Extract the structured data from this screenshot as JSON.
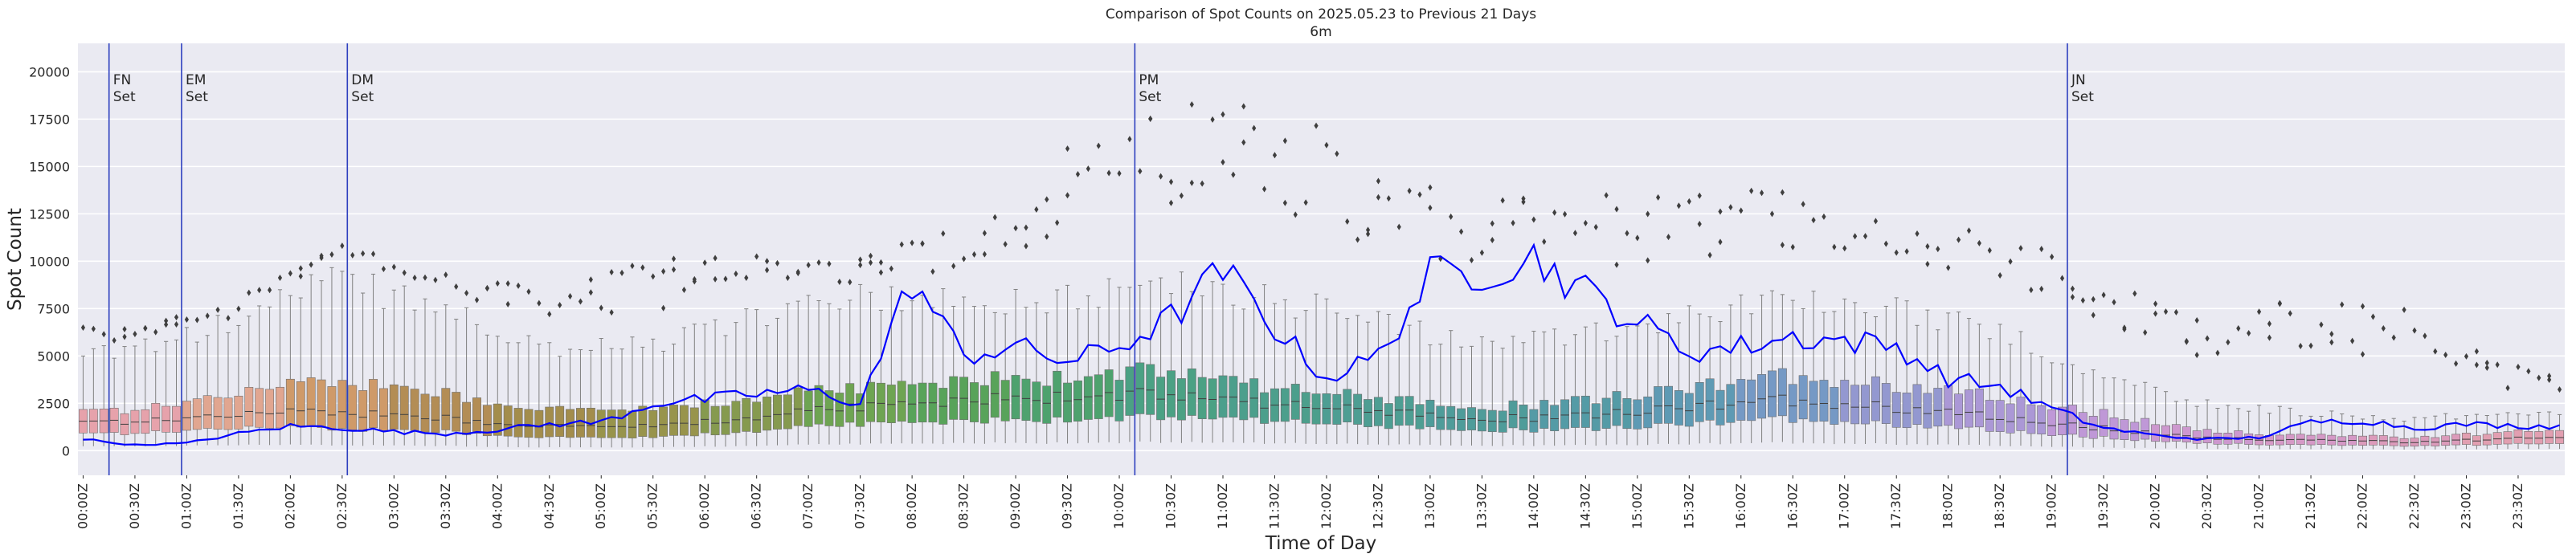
{
  "chart_data": {
    "type": "box",
    "title": "Comparison of Spot Counts on 2025.05.23 to Previous 21 Days",
    "subtitle": "6m",
    "xlabel": "Time of Day",
    "ylabel": "Spot Count",
    "ylim": [
      -1300,
      21500
    ],
    "yticks": [
      0,
      2500,
      5000,
      7500,
      10000,
      12500,
      15000,
      17500,
      20000
    ],
    "grid": true,
    "bins_per_day": 240,
    "bin_minutes": 6,
    "x_tick_labels": [
      "00:00Z",
      "00:30Z",
      "01:00Z",
      "01:30Z",
      "02:00Z",
      "02:30Z",
      "03:00Z",
      "03:30Z",
      "04:00Z",
      "04:30Z",
      "05:00Z",
      "05:30Z",
      "06:00Z",
      "06:30Z",
      "07:00Z",
      "07:30Z",
      "08:00Z",
      "08:30Z",
      "09:00Z",
      "09:30Z",
      "10:00Z",
      "10:30Z",
      "11:00Z",
      "11:30Z",
      "12:00Z",
      "12:30Z",
      "13:00Z",
      "13:30Z",
      "14:00Z",
      "14:30Z",
      "15:00Z",
      "15:30Z",
      "16:00Z",
      "16:30Z",
      "17:00Z",
      "17:30Z",
      "18:00Z",
      "18:30Z",
      "19:00Z",
      "19:30Z",
      "20:00Z",
      "20:30Z",
      "21:00Z",
      "21:30Z",
      "22:00Z",
      "22:30Z",
      "23:00Z",
      "23:30Z"
    ],
    "events": [
      {
        "label_line1": "FN",
        "label_line2": "Set",
        "bin": 2.5
      },
      {
        "label_line1": "EM",
        "label_line2": "Set",
        "bin": 9.5
      },
      {
        "label_line1": "DM",
        "label_line2": "Set",
        "bin": 25.5
      },
      {
        "label_line1": "PM",
        "label_line2": "Set",
        "bin": 101.5
      },
      {
        "label_line1": "JN",
        "label_line2": "Set",
        "bin": 191.5
      }
    ],
    "colors": {
      "background": "#eaeaf2",
      "grid": "#ffffff",
      "event_line": "#2d3fbf",
      "today_line": "#0000ff",
      "median": "#3f3f3f",
      "whisker": "#808080",
      "flier": "#3f3f3f"
    },
    "box_palette": [
      {
        "hour": 0,
        "color": "#e6a2ab"
      },
      {
        "hour": 1,
        "color": "#e1a690"
      },
      {
        "hour": 2,
        "color": "#cf9a69"
      },
      {
        "hour": 3,
        "color": "#b38d55"
      },
      {
        "hour": 4,
        "color": "#a38d4c"
      },
      {
        "hour": 5,
        "color": "#98944c"
      },
      {
        "hour": 6,
        "color": "#869a4f"
      },
      {
        "hour": 7,
        "color": "#6ea452"
      },
      {
        "hour": 8,
        "color": "#58a35a"
      },
      {
        "hour": 9,
        "color": "#4ea26e"
      },
      {
        "hour": 10,
        "color": "#4ba184"
      },
      {
        "hour": 11,
        "color": "#4c9f8c"
      },
      {
        "hour": 12,
        "color": "#4e9e93"
      },
      {
        "hour": 13,
        "color": "#4f9c9a"
      },
      {
        "hour": 14,
        "color": "#549ba6"
      },
      {
        "hour": 15,
        "color": "#5e9ab4"
      },
      {
        "hour": 16,
        "color": "#7599c5"
      },
      {
        "hour": 17,
        "color": "#9398d0"
      },
      {
        "hour": 18,
        "color": "#ab98d6"
      },
      {
        "hour": 19,
        "color": "#bf98d7"
      },
      {
        "hour": 20,
        "color": "#cd98cf"
      },
      {
        "hour": 21,
        "color": "#d598c6"
      },
      {
        "hour": 22,
        "color": "#dc9bbb"
      },
      {
        "hour": 23,
        "color": "#e29fb1"
      }
    ],
    "hourly_profile": [
      {
        "hour": 0,
        "q1": 900,
        "median": 1500,
        "q3": 2100,
        "whisker_high": 5200,
        "flier_max": 6500
      },
      {
        "hour": 1,
        "q1": 1200,
        "median": 1900,
        "q3": 3000,
        "whisker_high": 6800,
        "flier_max": 8000
      },
      {
        "hour": 2,
        "q1": 1200,
        "median": 2100,
        "q3": 3800,
        "whisker_high": 9000,
        "flier_max": 11000
      },
      {
        "hour": 3,
        "q1": 1000,
        "median": 1700,
        "q3": 3000,
        "whisker_high": 7500,
        "flier_max": 9500
      },
      {
        "hour": 4,
        "q1": 700,
        "median": 1300,
        "q3": 2200,
        "whisker_high": 5500,
        "flier_max": 8500
      },
      {
        "hour": 5,
        "q1": 700,
        "median": 1300,
        "q3": 2200,
        "whisker_high": 5500,
        "flier_max": 10000
      },
      {
        "hour": 6,
        "q1": 1000,
        "median": 1700,
        "q3": 2700,
        "whisker_high": 7000,
        "flier_max": 11000
      },
      {
        "hour": 7,
        "q1": 1400,
        "median": 2300,
        "q3": 3300,
        "whisker_high": 8000,
        "flier_max": 10000
      },
      {
        "hour": 8,
        "q1": 1600,
        "median": 2700,
        "q3": 3800,
        "whisker_high": 8000,
        "flier_max": 12000
      },
      {
        "hour": 9,
        "q1": 1600,
        "median": 2800,
        "q3": 3800,
        "whisker_high": 8000,
        "flier_max": 16000
      },
      {
        "hour": 10,
        "q1": 1800,
        "median": 3000,
        "q3": 4300,
        "whisker_high": 9000,
        "flier_max": 18000
      },
      {
        "hour": 11,
        "q1": 1600,
        "median": 2500,
        "q3": 3400,
        "whisker_high": 8000,
        "flier_max": 20000
      },
      {
        "hour": 12,
        "q1": 1300,
        "median": 2100,
        "q3": 2800,
        "whisker_high": 7000,
        "flier_max": 15000
      },
      {
        "hour": 13,
        "q1": 1100,
        "median": 1700,
        "q3": 2300,
        "whisker_high": 5500,
        "flier_max": 13000
      },
      {
        "hour": 14,
        "q1": 1100,
        "median": 1800,
        "q3": 2600,
        "whisker_high": 6000,
        "flier_max": 14000
      },
      {
        "hour": 15,
        "q1": 1400,
        "median": 2300,
        "q3": 3300,
        "whisker_high": 7000,
        "flier_max": 13500
      },
      {
        "hour": 16,
        "q1": 1700,
        "median": 2700,
        "q3": 4000,
        "whisker_high": 8000,
        "flier_max": 14000
      },
      {
        "hour": 17,
        "q1": 1400,
        "median": 2300,
        "q3": 3500,
        "whisker_high": 7500,
        "flier_max": 12000
      },
      {
        "hour": 18,
        "q1": 1100,
        "median": 1800,
        "q3": 2900,
        "whisker_high": 6500,
        "flier_max": 12500
      },
      {
        "hour": 19,
        "q1": 700,
        "median": 1200,
        "q3": 2000,
        "whisker_high": 4000,
        "flier_max": 9000
      },
      {
        "hour": 20,
        "q1": 400,
        "median": 700,
        "q3": 1100,
        "whisker_high": 2500,
        "flier_max": 7500
      },
      {
        "hour": 21,
        "q1": 300,
        "median": 550,
        "q3": 800,
        "whisker_high": 2000,
        "flier_max": 8000
      },
      {
        "hour": 22,
        "q1": 250,
        "median": 450,
        "q3": 700,
        "whisker_high": 1700,
        "flier_max": 7500
      },
      {
        "hour": 23,
        "q1": 350,
        "median": 650,
        "q3": 1000,
        "whisker_high": 2000,
        "flier_max": 4500
      }
    ],
    "today_series": {
      "times": [
        "00:00Z",
        "00:30Z",
        "01:00Z",
        "01:30Z",
        "02:00Z",
        "02:30Z",
        "03:00Z",
        "03:30Z",
        "04:00Z",
        "04:30Z",
        "05:00Z",
        "05:30Z",
        "06:00Z",
        "06:30Z",
        "07:00Z",
        "07:30Z",
        "08:00Z",
        "08:30Z",
        "09:00Z",
        "09:30Z",
        "10:00Z",
        "10:30Z",
        "11:00Z",
        "11:30Z",
        "12:00Z",
        "12:30Z",
        "13:00Z",
        "13:30Z",
        "14:00Z",
        "14:30Z",
        "15:00Z",
        "15:30Z",
        "16:00Z",
        "16:30Z",
        "17:00Z",
        "17:30Z",
        "18:00Z",
        "18:30Z",
        "19:00Z",
        "19:30Z",
        "20:00Z",
        "20:30Z",
        "21:00Z",
        "21:30Z",
        "22:00Z",
        "22:30Z",
        "23:00Z",
        "23:30Z"
      ],
      "values": [
        600,
        300,
        400,
        900,
        1300,
        1200,
        1000,
        900,
        1100,
        1400,
        1500,
        2500,
        2700,
        3000,
        3200,
        2500,
        9000,
        5000,
        5500,
        4700,
        5500,
        7000,
        9500,
        6500,
        3800,
        5000,
        9200,
        9500,
        10200,
        8400,
        6800,
        5200,
        5500,
        6000,
        5800,
        5500,
        3800,
        3400,
        2200,
        1200,
        800,
        600,
        700,
        1500,
        1600,
        1200,
        1400,
        1300
      ]
    }
  }
}
